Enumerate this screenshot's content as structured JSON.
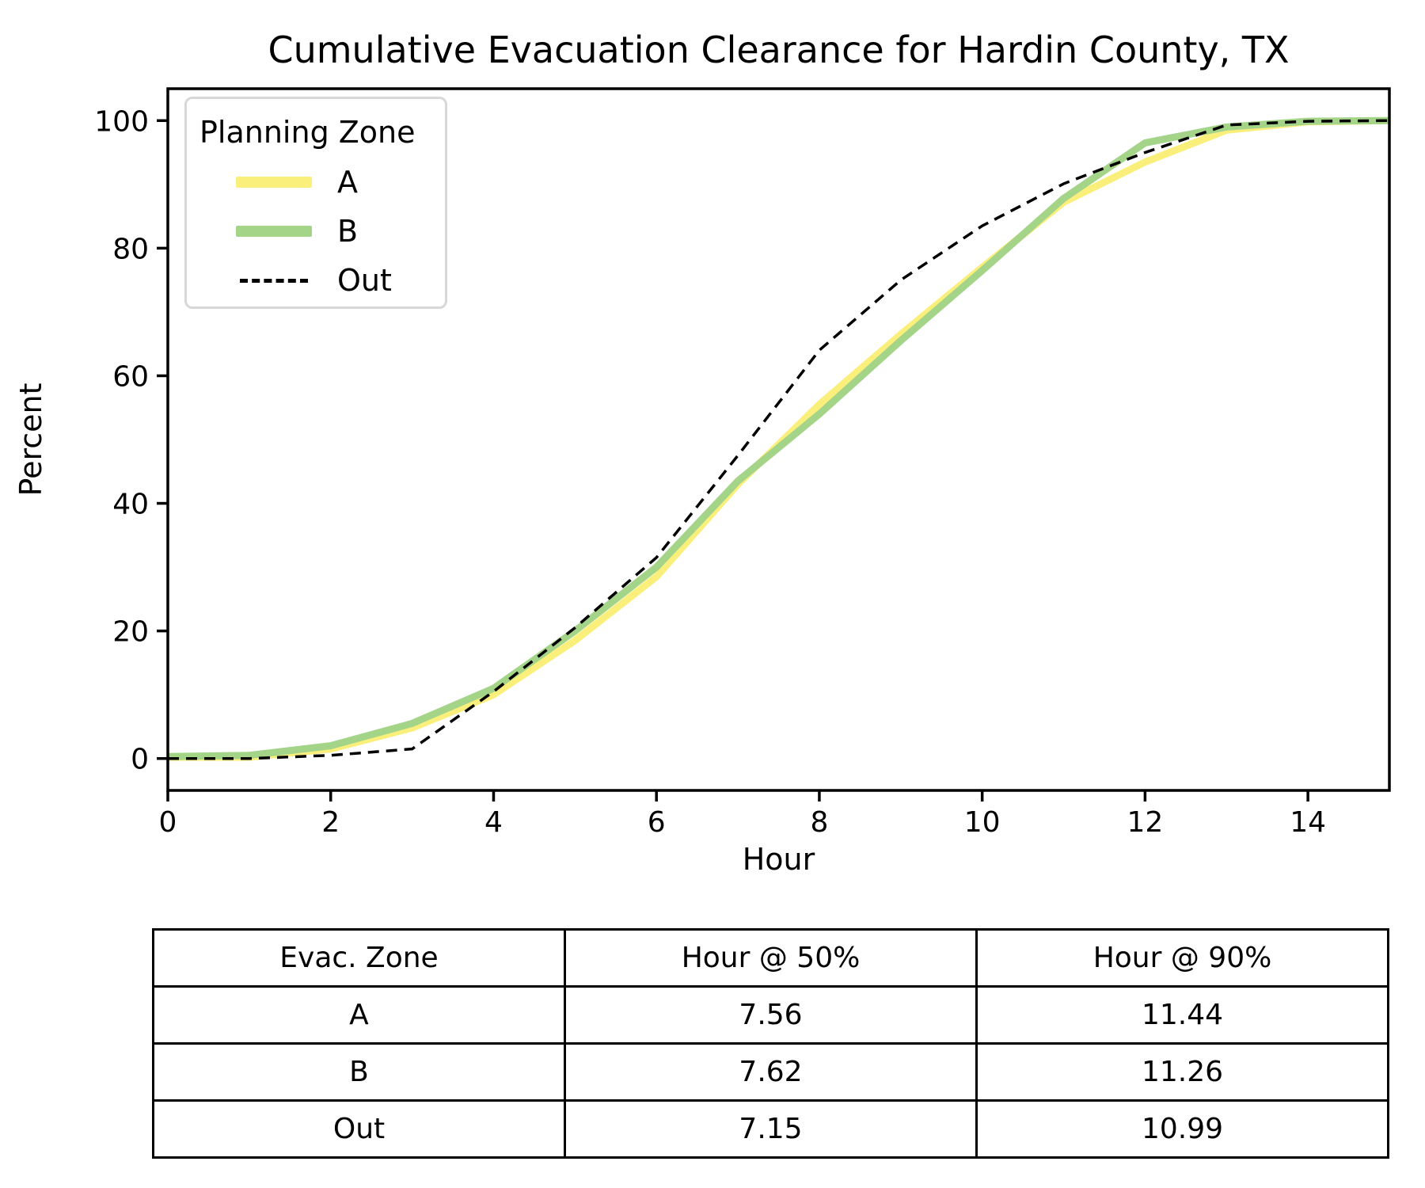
{
  "chart_data": {
    "type": "line",
    "title": "Cumulative Evacuation Clearance for Hardin County, TX",
    "xlabel": "Hour",
    "ylabel": "Percent",
    "xlim": [
      0,
      15
    ],
    "ylim": [
      -5,
      105
    ],
    "xticks": [
      0,
      2,
      4,
      6,
      8,
      10,
      12,
      14
    ],
    "yticks": [
      0,
      20,
      40,
      60,
      80,
      100
    ],
    "grid": false,
    "legend": {
      "title": "Planning Zone",
      "position": "upper-left"
    },
    "x": [
      0,
      1,
      2,
      3,
      4,
      5,
      6,
      7,
      8,
      9,
      10,
      11,
      12,
      13,
      14,
      15
    ],
    "series": [
      {
        "name": "A",
        "color": "#FBEF7C",
        "style": "solid",
        "width": 9,
        "values": [
          0.2,
          0.2,
          1.5,
          4.8,
          10,
          18.5,
          28.5,
          43,
          55.5,
          66.5,
          77,
          87.2,
          93.5,
          98.5,
          99.8,
          100
        ]
      },
      {
        "name": "B",
        "color": "#A4D488",
        "style": "solid",
        "width": 9,
        "values": [
          0.3,
          0.5,
          2,
          5.5,
          11,
          20,
          30,
          43.5,
          54,
          65.5,
          76.5,
          87.8,
          96.5,
          99,
          99.9,
          100
        ]
      },
      {
        "name": "Out",
        "color": "#000000",
        "style": "dashed",
        "width": 3.5,
        "values": [
          0,
          0,
          0.5,
          1.5,
          10.5,
          20.5,
          31.5,
          47.5,
          64,
          75,
          83.5,
          90.1,
          95,
          99.3,
          99.9,
          100
        ]
      }
    ]
  },
  "table": {
    "headers": {
      "zone": "Evac. Zone",
      "h50": "Hour @ 50%",
      "h90": "Hour @ 90%"
    },
    "rows": [
      {
        "zone": "A",
        "h50": "7.56",
        "h90": "11.44"
      },
      {
        "zone": "B",
        "h50": "7.62",
        "h90": "11.26"
      },
      {
        "zone": "Out",
        "h50": "7.15",
        "h90": "10.99"
      }
    ]
  }
}
